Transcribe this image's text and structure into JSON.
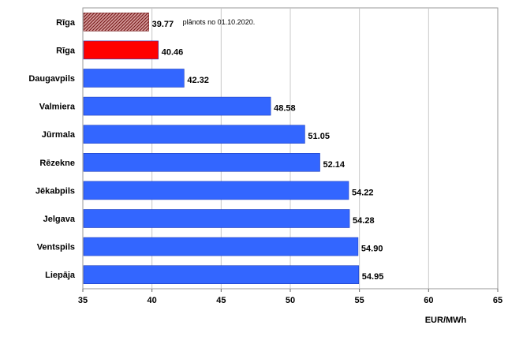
{
  "chart_data": {
    "type": "bar",
    "orientation": "horizontal",
    "categories": [
      "Rīga",
      "Rīga",
      "Daugavpils",
      "Valmiera",
      "Jūrmala",
      "Rēzekne",
      "Jēkabpils",
      "Jelgava",
      "Ventspils",
      "Liepāja"
    ],
    "values": [
      39.77,
      40.46,
      42.32,
      48.58,
      51.05,
      52.14,
      54.22,
      54.28,
      54.9,
      54.95
    ],
    "value_labels": [
      "39.77",
      "40.46",
      "42.32",
      "48.58",
      "51.05",
      "52.14",
      "54.22",
      "54.28",
      "54.90",
      "54.95"
    ],
    "bar_styles": [
      "hatched",
      "highlight",
      "normal",
      "normal",
      "normal",
      "normal",
      "normal",
      "normal",
      "normal",
      "normal"
    ],
    "colors": {
      "normal": "#3366ff",
      "highlight": "#ff0000",
      "hatched_fg": "#7a1f1f",
      "hatched_bg": "#d9a0a0",
      "grid": "#c8c8c8"
    },
    "annotation": "plānots no 01.10.2020.",
    "xlim": [
      35,
      65
    ],
    "xticks": [
      35,
      40,
      45,
      50,
      55,
      60,
      65
    ],
    "xlabel": "EUR/MWh",
    "grid": true
  }
}
